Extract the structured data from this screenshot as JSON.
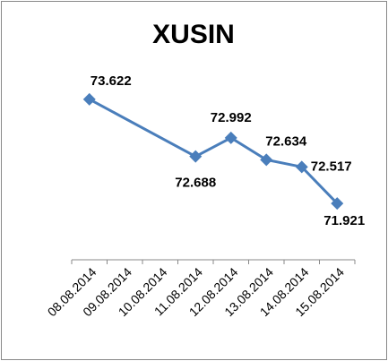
{
  "chart_data": {
    "type": "line",
    "title": "XUSIN",
    "x": [
      "08.08.2014",
      "11.08.2014",
      "12.08.2014",
      "13.08.2014",
      "14.08.2014",
      "15.08.2014"
    ],
    "series": [
      {
        "name": "XUSIN",
        "color": "#4a7ebb",
        "values": [
          73.622,
          72.688,
          72.992,
          72.634,
          72.517,
          71.921
        ]
      }
    ],
    "xticks": [
      "08.08.2014",
      "09.08.2014",
      "10.08.2014",
      "11.08.2014",
      "12.08.2014",
      "13.08.2014",
      "14.08.2014",
      "15.08.2014"
    ],
    "ylim": [
      71,
      74
    ]
  }
}
